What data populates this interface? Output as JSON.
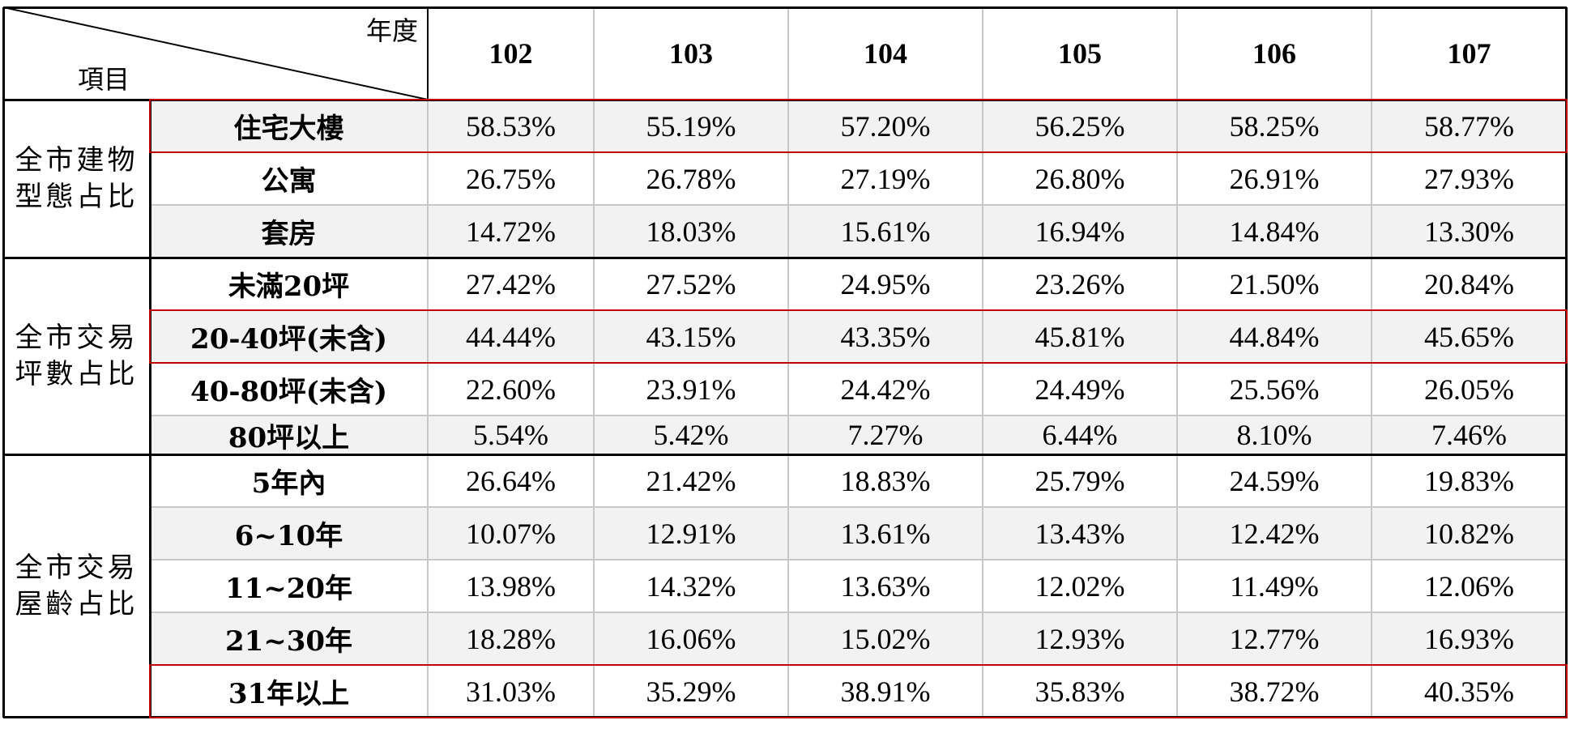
{
  "header": {
    "corner_top": "年度",
    "corner_bottom": "項目",
    "years": [
      "102",
      "103",
      "104",
      "105",
      "106",
      "107"
    ]
  },
  "groups": [
    {
      "label_lines": [
        "全市建物",
        "型態占比"
      ],
      "rows": [
        {
          "label": "住宅大樓",
          "values": [
            "58.53%",
            "55.19%",
            "57.20%",
            "56.25%",
            "58.25%",
            "58.77%"
          ],
          "highlighted": true
        },
        {
          "label": "公寓",
          "values": [
            "26.75%",
            "26.78%",
            "27.19%",
            "26.80%",
            "26.91%",
            "27.93%"
          ],
          "highlighted": false
        },
        {
          "label": "套房",
          "values": [
            "14.72%",
            "18.03%",
            "15.61%",
            "16.94%",
            "14.84%",
            "13.30%"
          ],
          "highlighted": false
        }
      ]
    },
    {
      "label_lines": [
        "全市交易",
        "坪數占比"
      ],
      "rows": [
        {
          "label": "未滿20坪",
          "values": [
            "27.42%",
            "27.52%",
            "24.95%",
            "23.26%",
            "21.50%",
            "20.84%"
          ],
          "highlighted": false
        },
        {
          "label": "20-40坪(未含)",
          "values": [
            "44.44%",
            "43.15%",
            "43.35%",
            "45.81%",
            "44.84%",
            "45.65%"
          ],
          "highlighted": true
        },
        {
          "label": "40-80坪(未含)",
          "values": [
            "22.60%",
            "23.91%",
            "24.42%",
            "24.49%",
            "25.56%",
            "26.05%"
          ],
          "highlighted": false
        },
        {
          "label": "80坪以上",
          "values": [
            "5.54%",
            "5.42%",
            "7.27%",
            "6.44%",
            "8.10%",
            "7.46%"
          ],
          "highlighted": false
        }
      ]
    },
    {
      "label_lines": [
        "全市交易",
        "屋齡占比"
      ],
      "rows": [
        {
          "label": "5年內",
          "values": [
            "26.64%",
            "21.42%",
            "18.83%",
            "25.79%",
            "24.59%",
            "19.83%"
          ],
          "highlighted": false
        },
        {
          "label": "6~10年",
          "values": [
            "10.07%",
            "12.91%",
            "13.61%",
            "13.43%",
            "12.42%",
            "10.82%"
          ],
          "highlighted": false
        },
        {
          "label": "11~20年",
          "values": [
            "13.98%",
            "14.32%",
            "13.63%",
            "12.02%",
            "11.49%",
            "12.06%"
          ],
          "highlighted": false
        },
        {
          "label": "21~30年",
          "values": [
            "18.28%",
            "16.06%",
            "15.02%",
            "12.93%",
            "12.77%",
            "16.93%"
          ],
          "highlighted": false
        },
        {
          "label": "31年以上",
          "values": [
            "31.03%",
            "35.29%",
            "38.91%",
            "35.83%",
            "38.72%",
            "40.35%"
          ],
          "highlighted": true
        }
      ]
    }
  ],
  "colors": {
    "highlight_border": "#c00000",
    "row_shade": "#f2f2f2",
    "grid_line": "#c8c8c8",
    "frame_line": "#000000"
  }
}
